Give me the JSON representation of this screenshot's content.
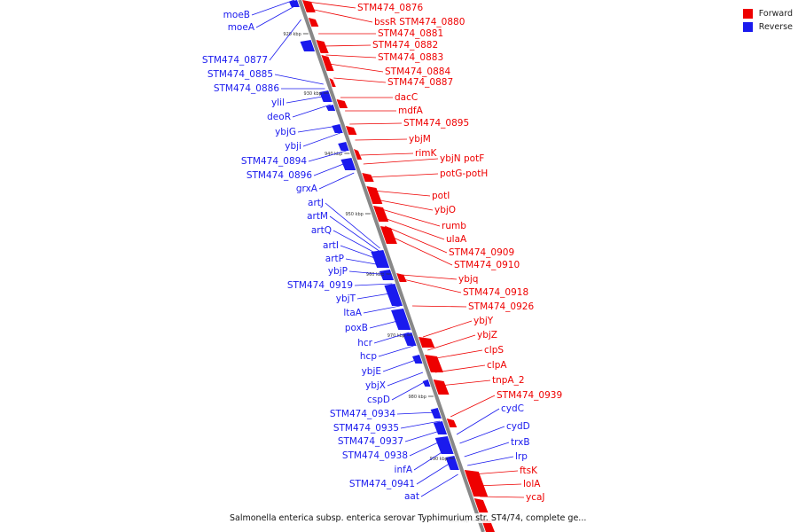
{
  "caption": "Salmonella enterica subsp. enterica serovar Typhimurium str. ST4/74, complete ge...",
  "legend": [
    {
      "label": "Forward",
      "color": "#ee0000"
    },
    {
      "label": "Reverse",
      "color": "#1a1aee"
    }
  ],
  "colors": {
    "forward": "#ee0000",
    "reverse": "#1a1aee",
    "backbone": "#888888"
  },
  "ticks": [
    "920 kbp",
    "930 kbp",
    "940 kbp",
    "950 kbp",
    "960 kbp",
    "970 kbp",
    "980 kbp",
    "990 kbp",
    "1000 kbp"
  ],
  "reverse_genes": [
    "moeB",
    "moeA",
    "STM474_0877",
    "STM474_0885",
    "STM474_0886",
    "ylil",
    "deoR",
    "ybjG",
    "ybji",
    "STM474_0894",
    "STM474_0896",
    "grxA",
    "artJ",
    "artM",
    "artQ",
    "artI",
    "artP",
    "ybjP",
    "STM474_0919",
    "ybjT",
    "ltaA",
    "poxB",
    "hcr",
    "hcp",
    "ybjE",
    "ybjX",
    "cspD",
    "STM474_0934",
    "STM474_0935",
    "STM474_0937",
    "STM474_0938",
    "infA",
    "STM474_0941",
    "aat"
  ],
  "forward_genes": [
    "STM474_0876",
    "bssR",
    "STM474_0880",
    "STM474_0881",
    "STM474_0882",
    "STM474_0883",
    "STM474_0884",
    "STM474_0887",
    "dacC",
    "mdfA",
    "STM474_0895",
    "ybjM",
    "rimK",
    "ybjN",
    "potF",
    "potG",
    "potH",
    "potI",
    "ybjO",
    "rumb",
    "ulaA",
    "STM474_0909",
    "STM474_0910",
    "ybjq",
    "STM474_0918",
    "STM474_0926",
    "ybjY",
    "ybjZ",
    "clpS",
    "clpA",
    "tnpA_2",
    "STM474_0939"
  ],
  "forward_side_reverse_genes": [
    "cydC",
    "cydD",
    "trxB",
    "lrp"
  ],
  "forward_tail_genes": [
    "ftsK",
    "lolA",
    "ycaJ"
  ]
}
